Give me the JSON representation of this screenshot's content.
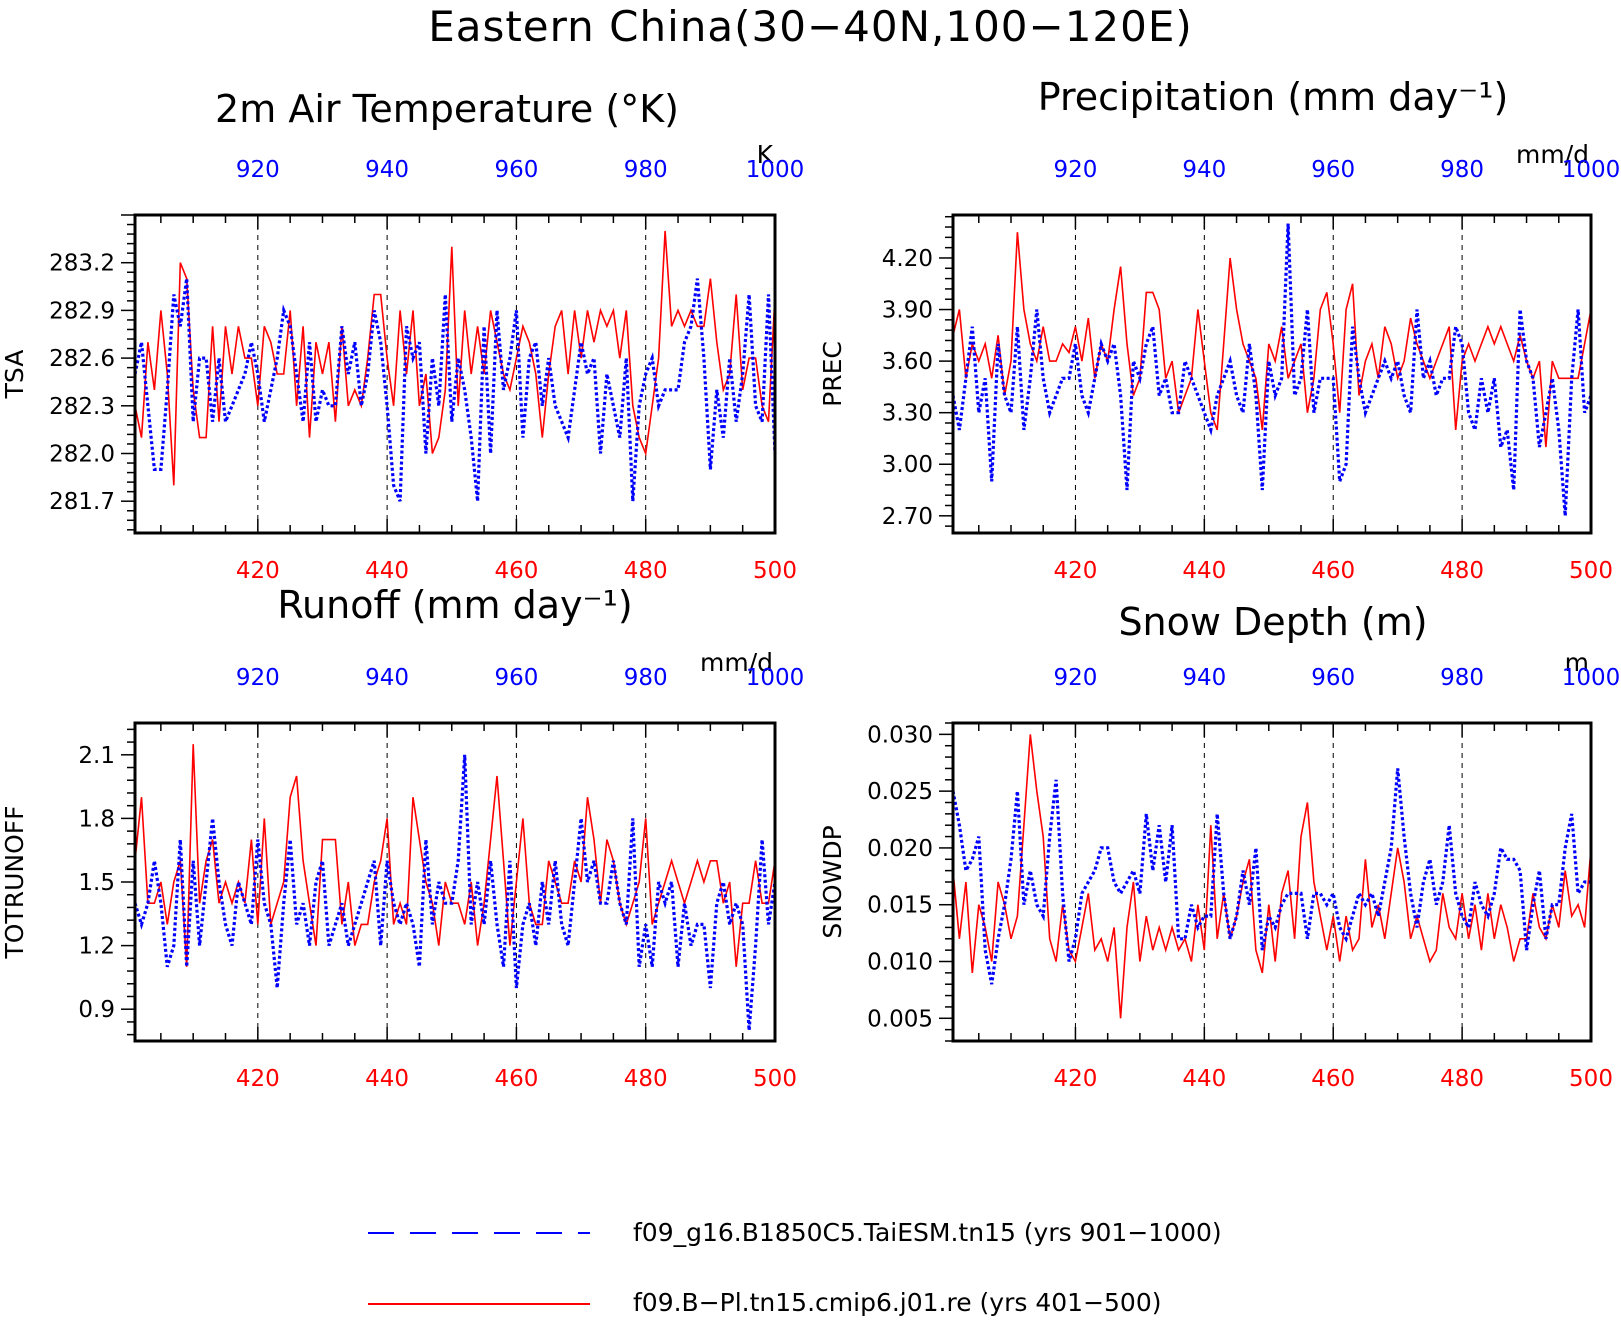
{
  "figure": {
    "title": "Eastern China(30−40N,100−120E)",
    "colors": {
      "run1": "#0000ff",
      "run2": "#ff0000",
      "axis": "#000000",
      "grid": "#000000"
    }
  },
  "legend": {
    "items": [
      {
        "label": "f09_g16.B1850C5.TaiESM.tn15 (yrs 901−1000)",
        "color": "#0000ff",
        "style": "dashed"
      },
      {
        "label": "f09.B−Pl.tn15.cmip6.j01.re (yrs 401−500)",
        "color": "#ff0000",
        "style": "solid"
      }
    ]
  },
  "chart_data": [
    {
      "type": "line",
      "title": "2m Air Temperature (°K)",
      "ylabel": "TSA",
      "unit": "K",
      "ylim": [
        281.5,
        283.5
      ],
      "yticks": [
        281.7,
        282.0,
        282.3,
        282.6,
        282.9,
        283.2
      ],
      "ytick_labels": [
        "281.7",
        "282.0",
        "282.3",
        "282.6",
        "282.9",
        "283.2"
      ],
      "x_bottom": {
        "range": [
          401,
          500
        ],
        "ticks": [
          420,
          440,
          460,
          480,
          500
        ],
        "color": "#ff0000"
      },
      "x_top": {
        "range": [
          901,
          1000
        ],
        "ticks": [
          920,
          940,
          960,
          980,
          1000
        ],
        "color": "#0000ff"
      },
      "grid_x": [
        420,
        440,
        460,
        480
      ],
      "series": [
        {
          "key": "red",
          "start_year": 401,
          "color": "#ff0000",
          "values": [
            282.3,
            282.1,
            282.7,
            282.4,
            282.9,
            282.5,
            281.8,
            283.2,
            283.1,
            282.4,
            282.1,
            282.1,
            282.8,
            282.2,
            282.8,
            282.5,
            282.8,
            282.6,
            282.6,
            282.3,
            282.8,
            282.7,
            282.5,
            282.5,
            282.9,
            282.3,
            282.8,
            282.1,
            282.7,
            282.5,
            282.7,
            282.2,
            282.8,
            282.3,
            282.4,
            282.3,
            282.6,
            283.0,
            283.0,
            282.6,
            282.3,
            282.9,
            282.5,
            282.9,
            282.3,
            282.5,
            282.0,
            282.1,
            282.4,
            283.3,
            282.3,
            282.9,
            282.5,
            282.8,
            282.5,
            282.9,
            282.7,
            282.5,
            282.4,
            282.6,
            282.8,
            282.7,
            282.5,
            282.1,
            282.5,
            282.8,
            282.9,
            282.5,
            282.9,
            282.6,
            282.9,
            282.7,
            282.9,
            282.8,
            282.9,
            282.6,
            282.9,
            282.3,
            282.1,
            282.0,
            282.3,
            282.6,
            283.4,
            282.8,
            282.9,
            282.8,
            282.9,
            282.8,
            282.8,
            283.1,
            282.7,
            282.4,
            282.5,
            283.0,
            282.4,
            282.6,
            282.6,
            282.3,
            282.2,
            283.0
          ]
        },
        {
          "key": "blue",
          "start_year": 901,
          "color": "#0000ff",
          "values": [
            282.5,
            282.7,
            282.3,
            281.9,
            281.9,
            282.4,
            283.0,
            282.8,
            283.1,
            282.2,
            282.6,
            282.6,
            282.2,
            282.6,
            282.2,
            282.3,
            282.4,
            282.5,
            282.7,
            282.5,
            282.2,
            282.4,
            282.6,
            282.9,
            282.8,
            282.5,
            282.2,
            282.7,
            282.2,
            282.4,
            282.3,
            282.3,
            282.8,
            282.5,
            282.7,
            282.3,
            282.5,
            282.9,
            282.7,
            282.3,
            281.8,
            281.7,
            282.8,
            282.6,
            282.7,
            282.0,
            282.6,
            282.3,
            283.0,
            282.2,
            282.6,
            282.4,
            282.1,
            281.7,
            282.8,
            282.0,
            282.9,
            282.4,
            282.6,
            282.9,
            282.1,
            282.6,
            282.7,
            282.3,
            282.6,
            282.3,
            282.2,
            282.1,
            282.4,
            282.7,
            282.5,
            282.6,
            282.0,
            282.5,
            282.3,
            282.1,
            282.6,
            281.7,
            282.3,
            282.5,
            282.6,
            282.3,
            282.4,
            282.4,
            282.4,
            282.7,
            282.8,
            283.1,
            282.6,
            281.9,
            282.4,
            282.1,
            282.6,
            282.2,
            282.5,
            283.0,
            282.3,
            282.2,
            283.0,
            282.0
          ]
        }
      ]
    },
    {
      "type": "line",
      "title": "Precipitation (mm day⁻¹)",
      "ylabel": "PREC",
      "unit": "mm/d",
      "ylim": [
        2.6,
        4.45
      ],
      "yticks": [
        2.7,
        3.0,
        3.3,
        3.6,
        3.9,
        4.2
      ],
      "ytick_labels": [
        "2.70",
        "3.00",
        "3.30",
        "3.60",
        "3.90",
        "4.20"
      ],
      "x_bottom": {
        "range": [
          401,
          500
        ],
        "ticks": [
          420,
          440,
          460,
          480,
          500
        ],
        "color": "#ff0000"
      },
      "x_top": {
        "range": [
          901,
          1000
        ],
        "ticks": [
          920,
          940,
          960,
          980,
          1000
        ],
        "color": "#0000ff"
      },
      "grid_x": [
        420,
        440,
        460,
        480
      ],
      "series": [
        {
          "key": "red",
          "start_year": 401,
          "color": "#ff0000",
          "values": [
            3.75,
            3.9,
            3.5,
            3.7,
            3.6,
            3.7,
            3.5,
            3.75,
            3.4,
            3.6,
            4.35,
            3.9,
            3.7,
            3.6,
            3.8,
            3.6,
            3.6,
            3.7,
            3.65,
            3.8,
            3.6,
            3.85,
            3.5,
            3.7,
            3.6,
            3.9,
            4.15,
            3.7,
            3.4,
            3.5,
            4.0,
            4.0,
            3.9,
            3.5,
            3.6,
            3.3,
            3.4,
            3.5,
            3.9,
            3.6,
            3.3,
            3.2,
            3.7,
            4.2,
            3.9,
            3.7,
            3.6,
            3.5,
            3.2,
            3.7,
            3.6,
            3.8,
            3.5,
            3.6,
            3.7,
            3.3,
            3.5,
            3.9,
            4.0,
            3.7,
            3.3,
            3.9,
            4.05,
            3.4,
            3.6,
            3.7,
            3.5,
            3.8,
            3.7,
            3.5,
            3.6,
            3.85,
            3.7,
            3.6,
            3.5,
            3.6,
            3.7,
            3.8,
            3.2,
            3.6,
            3.7,
            3.6,
            3.7,
            3.8,
            3.7,
            3.8,
            3.7,
            3.6,
            3.75,
            3.6,
            3.5,
            3.6,
            3.1,
            3.6,
            3.5,
            3.5,
            3.5,
            3.5,
            3.7,
            3.9
          ]
        },
        {
          "key": "blue",
          "start_year": 901,
          "color": "#0000ff",
          "values": [
            3.4,
            3.2,
            3.5,
            3.8,
            3.3,
            3.5,
            2.9,
            3.7,
            3.4,
            3.3,
            3.8,
            3.2,
            3.5,
            3.9,
            3.5,
            3.3,
            3.4,
            3.5,
            3.5,
            3.7,
            3.4,
            3.3,
            3.5,
            3.7,
            3.6,
            3.7,
            3.4,
            2.85,
            3.6,
            3.5,
            3.7,
            3.8,
            3.4,
            3.5,
            3.3,
            3.3,
            3.6,
            3.5,
            3.4,
            3.3,
            3.2,
            3.4,
            3.5,
            3.6,
            3.4,
            3.3,
            3.7,
            3.4,
            2.85,
            3.6,
            3.4,
            3.5,
            4.4,
            3.4,
            3.5,
            3.9,
            3.3,
            3.5,
            3.5,
            3.5,
            2.9,
            3.0,
            3.8,
            3.5,
            3.3,
            3.4,
            3.5,
            3.6,
            3.5,
            3.6,
            3.4,
            3.3,
            3.9,
            3.5,
            3.6,
            3.4,
            3.5,
            3.5,
            3.8,
            3.7,
            3.3,
            3.2,
            3.5,
            3.3,
            3.5,
            3.1,
            3.2,
            2.85,
            3.9,
            3.6,
            3.5,
            3.1,
            3.3,
            3.5,
            3.2,
            2.7,
            3.5,
            3.9,
            3.3,
            3.4
          ]
        }
      ]
    },
    {
      "type": "line",
      "title": "Runoff (mm day⁻¹)",
      "ylabel": "TOTRUNOFF",
      "unit": "mm/d",
      "ylim": [
        0.75,
        2.25
      ],
      "yticks": [
        0.9,
        1.2,
        1.5,
        1.8,
        2.1
      ],
      "ytick_labels": [
        "0.9",
        "1.2",
        "1.5",
        "1.8",
        "2.1"
      ],
      "x_bottom": {
        "range": [
          401,
          500
        ],
        "ticks": [
          420,
          440,
          460,
          480,
          500
        ],
        "color": "#ff0000"
      },
      "x_top": {
        "range": [
          901,
          1000
        ],
        "ticks": [
          920,
          940,
          960,
          980,
          1000
        ],
        "color": "#0000ff"
      },
      "grid_x": [
        420,
        440,
        460,
        480
      ],
      "series": [
        {
          "key": "red",
          "start_year": 401,
          "color": "#ff0000",
          "values": [
            1.6,
            1.9,
            1.4,
            1.4,
            1.5,
            1.3,
            1.5,
            1.6,
            1.1,
            2.15,
            1.4,
            1.6,
            1.7,
            1.4,
            1.5,
            1.4,
            1.5,
            1.4,
            1.7,
            1.3,
            1.8,
            1.3,
            1.4,
            1.5,
            1.9,
            2.0,
            1.6,
            1.4,
            1.2,
            1.7,
            1.7,
            1.7,
            1.3,
            1.5,
            1.2,
            1.3,
            1.3,
            1.5,
            1.6,
            1.8,
            1.3,
            1.4,
            1.3,
            1.9,
            1.7,
            1.5,
            1.4,
            1.2,
            1.5,
            1.4,
            1.4,
            1.3,
            1.5,
            1.2,
            1.4,
            1.7,
            2.0,
            1.6,
            1.2,
            1.5,
            1.8,
            1.4,
            1.3,
            1.3,
            1.6,
            1.5,
            1.4,
            1.4,
            1.6,
            1.5,
            1.9,
            1.7,
            1.4,
            1.7,
            1.6,
            1.4,
            1.3,
            1.4,
            1.5,
            1.8,
            1.3,
            1.4,
            1.5,
            1.6,
            1.5,
            1.4,
            1.5,
            1.6,
            1.5,
            1.6,
            1.6,
            1.4,
            1.5,
            1.1,
            1.4,
            1.4,
            1.6,
            1.4,
            1.4,
            1.6
          ]
        },
        {
          "key": "blue",
          "start_year": 901,
          "color": "#0000ff",
          "values": [
            1.4,
            1.3,
            1.4,
            1.6,
            1.4,
            1.1,
            1.2,
            1.7,
            1.1,
            1.6,
            1.2,
            1.5,
            1.8,
            1.5,
            1.3,
            1.2,
            1.5,
            1.4,
            1.3,
            1.7,
            1.4,
            1.3,
            1.0,
            1.4,
            1.7,
            1.3,
            1.4,
            1.2,
            1.5,
            1.6,
            1.2,
            1.3,
            1.4,
            1.2,
            1.3,
            1.4,
            1.5,
            1.6,
            1.2,
            1.6,
            1.4,
            1.3,
            1.4,
            1.3,
            1.1,
            1.7,
            1.3,
            1.5,
            1.4,
            1.4,
            1.6,
            2.1,
            1.3,
            1.5,
            1.3,
            1.6,
            1.3,
            1.1,
            1.6,
            1.0,
            1.3,
            1.4,
            1.2,
            1.5,
            1.3,
            1.6,
            1.3,
            1.2,
            1.5,
            1.8,
            1.5,
            1.6,
            1.4,
            1.4,
            1.6,
            1.4,
            1.3,
            1.8,
            1.1,
            1.3,
            1.1,
            1.5,
            1.4,
            1.5,
            1.1,
            1.4,
            1.2,
            1.3,
            1.3,
            1.0,
            1.4,
            1.5,
            1.3,
            1.4,
            1.3,
            0.8,
            1.2,
            1.7,
            1.3,
            1.5
          ]
        }
      ]
    },
    {
      "type": "line",
      "title": "Snow Depth (m)",
      "ylabel": "SNOWDP",
      "unit": "m",
      "ylim": [
        0.003,
        0.031
      ],
      "yticks": [
        0.005,
        0.01,
        0.015,
        0.02,
        0.025,
        0.03
      ],
      "ytick_labels": [
        "0.005",
        "0.010",
        "0.015",
        "0.020",
        "0.025",
        "0.030"
      ],
      "x_bottom": {
        "range": [
          401,
          500
        ],
        "ticks": [
          420,
          440,
          460,
          480,
          500
        ],
        "color": "#ff0000"
      },
      "x_top": {
        "range": [
          901,
          1000
        ],
        "ticks": [
          920,
          940,
          960,
          980,
          1000
        ],
        "color": "#0000ff"
      },
      "grid_x": [
        420,
        440,
        460,
        480
      ],
      "series": [
        {
          "key": "red",
          "start_year": 401,
          "color": "#ff0000",
          "values": [
            0.018,
            0.012,
            0.017,
            0.009,
            0.015,
            0.013,
            0.01,
            0.017,
            0.015,
            0.012,
            0.014,
            0.022,
            0.03,
            0.025,
            0.021,
            0.012,
            0.01,
            0.015,
            0.011,
            0.01,
            0.013,
            0.016,
            0.011,
            0.012,
            0.01,
            0.013,
            0.005,
            0.013,
            0.017,
            0.01,
            0.014,
            0.011,
            0.013,
            0.011,
            0.013,
            0.011,
            0.012,
            0.01,
            0.015,
            0.011,
            0.022,
            0.012,
            0.016,
            0.012,
            0.014,
            0.017,
            0.019,
            0.011,
            0.009,
            0.015,
            0.01,
            0.016,
            0.018,
            0.012,
            0.021,
            0.024,
            0.017,
            0.014,
            0.011,
            0.014,
            0.01,
            0.014,
            0.011,
            0.012,
            0.019,
            0.013,
            0.015,
            0.012,
            0.016,
            0.02,
            0.017,
            0.012,
            0.014,
            0.012,
            0.01,
            0.011,
            0.016,
            0.013,
            0.012,
            0.016,
            0.012,
            0.015,
            0.011,
            0.016,
            0.012,
            0.015,
            0.013,
            0.01,
            0.012,
            0.012,
            0.016,
            0.013,
            0.012,
            0.015,
            0.013,
            0.018,
            0.014,
            0.015,
            0.013,
            0.02
          ]
        },
        {
          "key": "blue",
          "start_year": 901,
          "color": "#0000ff",
          "values": [
            0.025,
            0.022,
            0.018,
            0.019,
            0.021,
            0.011,
            0.008,
            0.012,
            0.015,
            0.019,
            0.025,
            0.015,
            0.018,
            0.015,
            0.014,
            0.021,
            0.026,
            0.016,
            0.01,
            0.012,
            0.016,
            0.017,
            0.018,
            0.02,
            0.02,
            0.017,
            0.016,
            0.017,
            0.018,
            0.016,
            0.023,
            0.018,
            0.022,
            0.017,
            0.022,
            0.012,
            0.012,
            0.015,
            0.013,
            0.014,
            0.014,
            0.023,
            0.016,
            0.012,
            0.014,
            0.018,
            0.015,
            0.02,
            0.011,
            0.014,
            0.013,
            0.015,
            0.016,
            0.016,
            0.016,
            0.012,
            0.016,
            0.016,
            0.015,
            0.016,
            0.013,
            0.012,
            0.014,
            0.016,
            0.015,
            0.016,
            0.014,
            0.017,
            0.02,
            0.027,
            0.021,
            0.016,
            0.013,
            0.017,
            0.019,
            0.015,
            0.017,
            0.022,
            0.016,
            0.014,
            0.013,
            0.017,
            0.015,
            0.014,
            0.016,
            0.02,
            0.019,
            0.019,
            0.018,
            0.011,
            0.015,
            0.018,
            0.012,
            0.015,
            0.015,
            0.02,
            0.023,
            0.016,
            0.017,
            0.017
          ]
        }
      ]
    }
  ]
}
